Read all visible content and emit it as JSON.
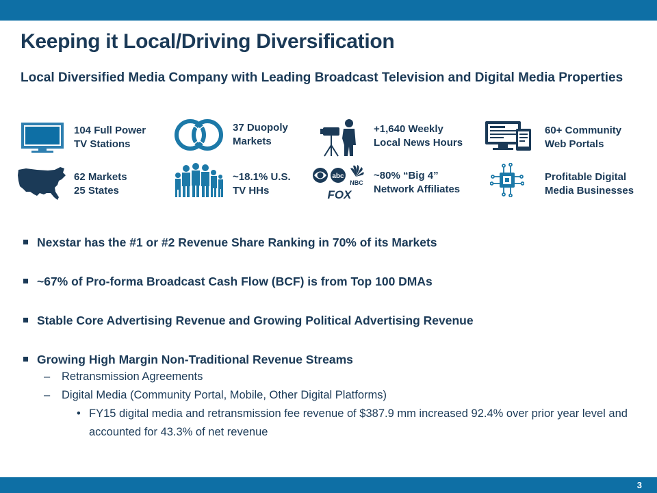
{
  "header": {
    "title": "Keeping it Local/Driving Diversification"
  },
  "subtitle": "Local Diversified Media Company with Leading Broadcast Television and Digital Media Properties",
  "stats": [
    {
      "label": "104 Full Power\nTV Stations",
      "icon": "tv-icon"
    },
    {
      "label": "37 Duopoly\nMarkets",
      "icon": "duopoly-rings-icon"
    },
    {
      "label": "+1,640 Weekly\nLocal News Hours",
      "icon": "news-camera-icon"
    },
    {
      "label": "60+ Community\nWeb Portals",
      "icon": "devices-icon"
    },
    {
      "label": "62 Markets\n25 States",
      "icon": "us-map-icon"
    },
    {
      "label": "~18.1% U.S.\nTV HHs",
      "icon": "people-icon"
    },
    {
      "label": "~80% “Big 4”\nNetwork Affiliates",
      "icon": "network-logos-icon"
    },
    {
      "label": "Profitable Digital\nMedia Businesses",
      "icon": "circuit-chip-icon"
    }
  ],
  "network_logos": {
    "abc": "abc",
    "nbc": "NBC",
    "fox": "FOX"
  },
  "bullets": [
    "Nexstar has the #1 or #2 Revenue Share Ranking in 70% of its Markets",
    "~67% of Pro-forma Broadcast Cash Flow (BCF) is from Top 100 DMAs",
    "Stable Core Advertising Revenue and Growing Political Advertising Revenue",
    "Growing High Margin Non-Traditional Revenue Streams"
  ],
  "sub_bullets": [
    "Retransmission Agreements",
    "Digital Media (Community Portal, Mobile, Other Digital Platforms)"
  ],
  "sub_sub_bullet": "FY15 digital media and retransmission fee revenue of $387.9 mm increased 92.4% over prior year level and accounted for 43.3% of net revenue",
  "footer": {
    "page_number": "3"
  },
  "colors": {
    "brand_blue": "#0e6fa5",
    "navy_text": "#1b3a57"
  }
}
